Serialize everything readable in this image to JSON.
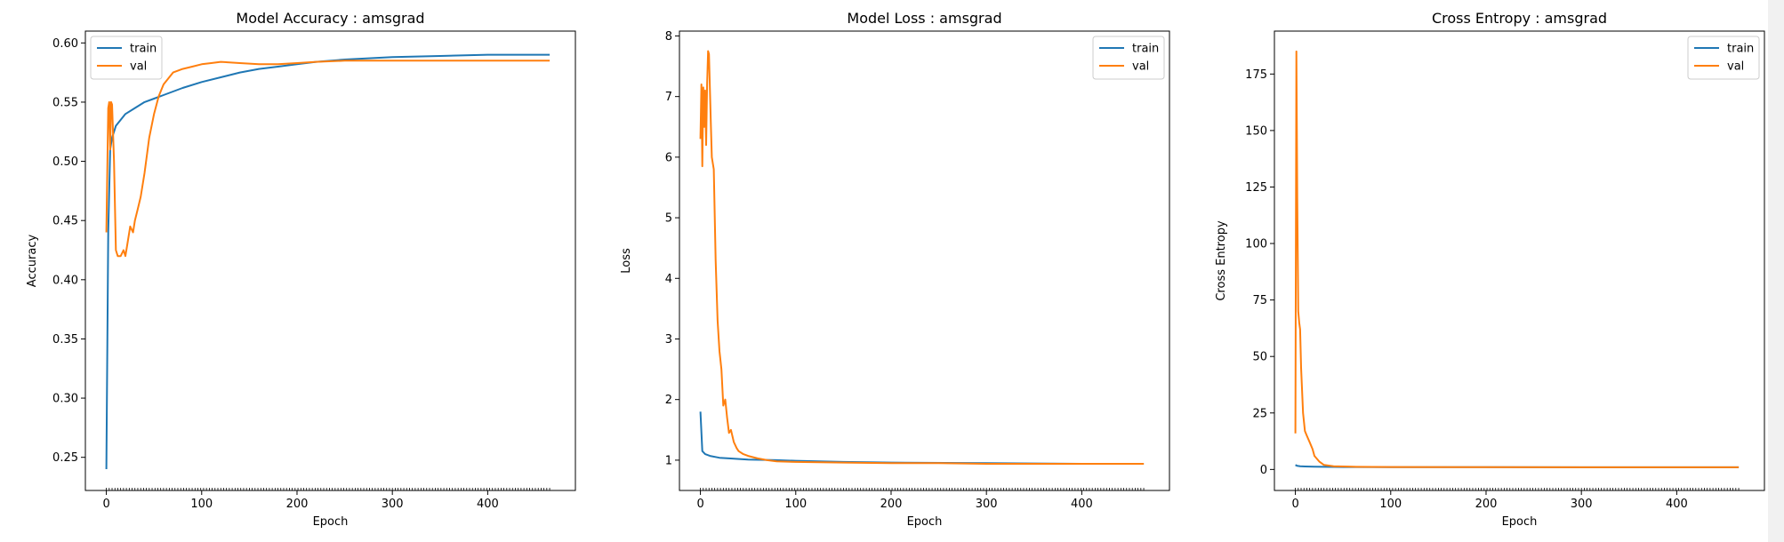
{
  "chart_data": [
    {
      "type": "line",
      "title": "Model Accuracy : amsgrad",
      "xlabel": "Epoch",
      "ylabel": "Accuracy",
      "xlim": [
        -22,
        492
      ],
      "ylim": [
        0.222,
        0.61
      ],
      "xticks": [
        0,
        100,
        200,
        300,
        400
      ],
      "yticks": [
        0.25,
        0.3,
        0.35,
        0.4,
        0.45,
        0.5,
        0.55,
        0.6
      ],
      "tick_labels": [
        "0.25",
        "0.30",
        "0.35",
        "0.40",
        "0.45",
        "0.50",
        "0.55",
        "0.60"
      ],
      "grid": false,
      "legend": "top-left",
      "series": [
        {
          "name": "train",
          "color": "#1f77b4",
          "x": [
            0,
            2,
            4,
            6,
            8,
            10,
            15,
            20,
            30,
            40,
            50,
            60,
            80,
            100,
            120,
            140,
            160,
            180,
            200,
            220,
            250,
            300,
            350,
            400,
            465
          ],
          "y": [
            0.24,
            0.44,
            0.51,
            0.52,
            0.525,
            0.53,
            0.535,
            0.54,
            0.545,
            0.55,
            0.553,
            0.556,
            0.562,
            0.567,
            0.571,
            0.575,
            0.578,
            0.58,
            0.582,
            0.584,
            0.586,
            0.588,
            0.589,
            0.59,
            0.59
          ]
        },
        {
          "name": "val",
          "color": "#ff7f0e",
          "x": [
            0,
            2,
            3,
            4,
            5,
            6,
            8,
            10,
            12,
            15,
            18,
            20,
            22,
            25,
            28,
            30,
            33,
            36,
            40,
            45,
            50,
            55,
            60,
            65,
            70,
            80,
            90,
            100,
            110,
            120,
            140,
            160,
            180,
            200,
            220,
            250,
            300,
            350,
            400,
            465
          ],
          "y": [
            0.44,
            0.545,
            0.55,
            0.51,
            0.55,
            0.548,
            0.5,
            0.425,
            0.42,
            0.42,
            0.425,
            0.42,
            0.43,
            0.445,
            0.44,
            0.45,
            0.46,
            0.47,
            0.49,
            0.52,
            0.54,
            0.555,
            0.565,
            0.57,
            0.575,
            0.578,
            0.58,
            0.582,
            0.583,
            0.584,
            0.583,
            0.582,
            0.582,
            0.583,
            0.584,
            0.585,
            0.585,
            0.585,
            0.585,
            0.585
          ]
        }
      ]
    },
    {
      "type": "line",
      "title": "Model Loss : amsgrad",
      "xlabel": "Epoch",
      "ylabel": "Loss",
      "xlim": [
        -22,
        492
      ],
      "ylim": [
        0.5,
        8.08
      ],
      "xticks": [
        0,
        100,
        200,
        300,
        400
      ],
      "yticks": [
        1,
        2,
        3,
        4,
        5,
        6,
        7,
        8
      ],
      "tick_labels": [
        "1",
        "2",
        "3",
        "4",
        "5",
        "6",
        "7",
        "8"
      ],
      "grid": false,
      "legend": "top-right",
      "series": [
        {
          "name": "train",
          "color": "#1f77b4",
          "x": [
            0,
            2,
            5,
            10,
            20,
            30,
            50,
            80,
            100,
            150,
            200,
            300,
            400,
            465
          ],
          "y": [
            1.8,
            1.15,
            1.1,
            1.07,
            1.04,
            1.03,
            1.01,
            1.0,
            0.99,
            0.97,
            0.96,
            0.95,
            0.94,
            0.94
          ]
        },
        {
          "name": "val",
          "color": "#ff7f0e",
          "x": [
            0,
            1,
            2,
            3,
            4,
            5,
            6,
            7,
            8,
            9,
            10,
            11,
            12,
            14,
            16,
            18,
            20,
            22,
            24,
            26,
            28,
            30,
            32,
            35,
            38,
            40,
            45,
            50,
            55,
            60,
            70,
            80,
            100,
            150,
            200,
            250,
            300,
            400,
            465
          ],
          "y": [
            6.3,
            7.2,
            5.85,
            7.15,
            6.5,
            7.1,
            6.2,
            7.2,
            7.75,
            7.7,
            7.1,
            6.5,
            6.0,
            5.8,
            4.3,
            3.3,
            2.8,
            2.5,
            1.9,
            2.0,
            1.7,
            1.45,
            1.5,
            1.3,
            1.2,
            1.15,
            1.1,
            1.07,
            1.05,
            1.03,
            1.0,
            0.98,
            0.97,
            0.96,
            0.95,
            0.95,
            0.94,
            0.94,
            0.94
          ]
        }
      ]
    },
    {
      "type": "line",
      "title": "Cross Entropy : amsgrad",
      "xlabel": "Epoch",
      "ylabel": "Cross Entropy",
      "xlim": [
        -22,
        492
      ],
      "ylim": [
        -9.3,
        194
      ],
      "xticks": [
        0,
        100,
        200,
        300,
        400
      ],
      "yticks": [
        0,
        25,
        50,
        75,
        100,
        125,
        150,
        175
      ],
      "tick_labels": [
        "0",
        "25",
        "50",
        "75",
        "100",
        "125",
        "150",
        "175"
      ],
      "grid": false,
      "legend": "top-right",
      "series": [
        {
          "name": "train",
          "color": "#1f77b4",
          "x": [
            0,
            2,
            5,
            10,
            20,
            50,
            100,
            200,
            300,
            400,
            465
          ],
          "y": [
            2.0,
            1.6,
            1.4,
            1.3,
            1.2,
            1.1,
            1.05,
            1.0,
            0.98,
            0.96,
            0.95
          ]
        },
        {
          "name": "val",
          "color": "#ff7f0e",
          "x": [
            0,
            1,
            2,
            3,
            4,
            5,
            6,
            8,
            10,
            12,
            15,
            18,
            20,
            25,
            30,
            40,
            60,
            100,
            200,
            300,
            400,
            465
          ],
          "y": [
            16,
            185,
            120,
            70,
            65,
            62,
            45,
            25,
            17,
            15,
            12,
            9,
            6,
            3.5,
            2.0,
            1.4,
            1.2,
            1.1,
            1.0,
            0.98,
            0.96,
            0.95
          ]
        }
      ]
    }
  ]
}
